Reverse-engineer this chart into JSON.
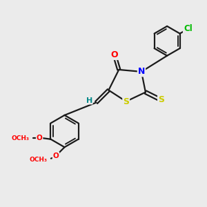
{
  "bg_color": "#ebebeb",
  "bond_color": "#1a1a1a",
  "bond_width": 1.6,
  "atom_colors": {
    "O": "#ff0000",
    "N": "#0000ff",
    "S": "#cccc00",
    "Cl": "#00bb00",
    "H": "#008888",
    "C": "#1a1a1a"
  },
  "font_size": 9,
  "fig_size": [
    3.0,
    3.0
  ],
  "dpi": 100
}
